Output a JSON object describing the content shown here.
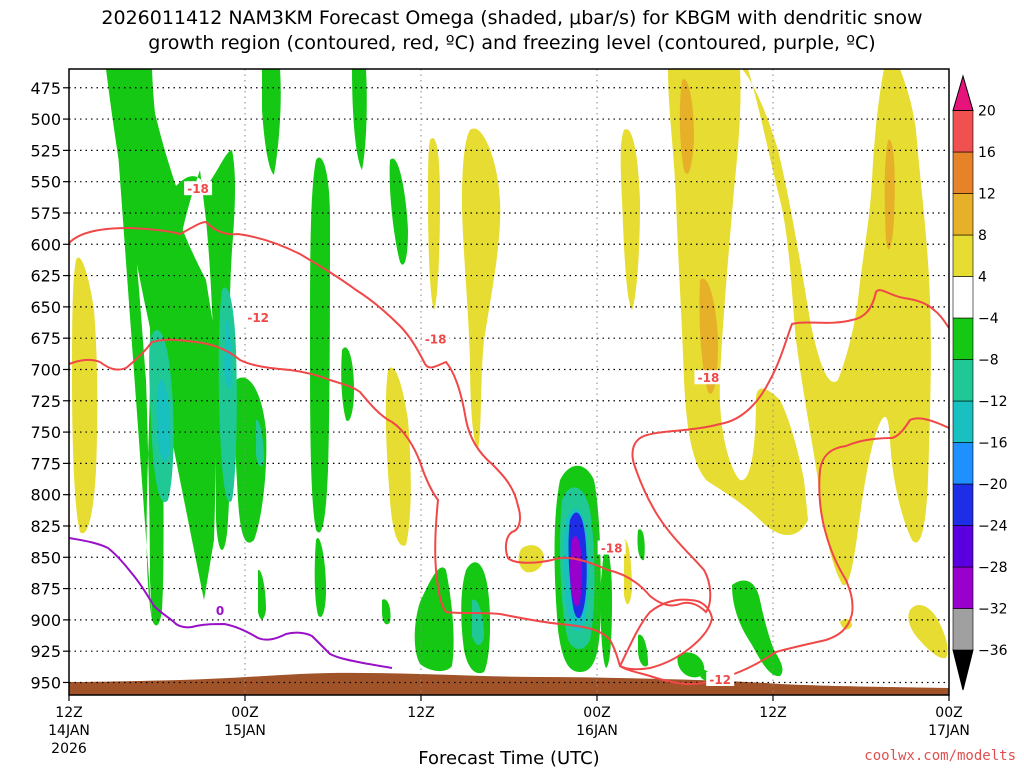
{
  "chart_data": {
    "type": "contour-cross-section",
    "title_line1": "2026011412 NAM3KM Forecast Omega (shaded, μbar/s) for KBGM with dendritic snow",
    "title_line2": "growth region (contoured, red, ºC) and freezing level (contoured, purple, ºC)",
    "xlabel": "Forecast Time (UTC)",
    "credit": "coolwx.com/modelts",
    "x_range_hours": [
      0,
      60
    ],
    "y_range_hpa": [
      460,
      960
    ],
    "y_ticks": [
      475,
      500,
      525,
      550,
      575,
      600,
      625,
      650,
      675,
      700,
      725,
      750,
      775,
      800,
      825,
      850,
      875,
      900,
      925,
      950
    ],
    "x_ticks": [
      {
        "hour": 0,
        "time": "12Z",
        "date": "14JAN",
        "year": "2026"
      },
      {
        "hour": 12,
        "time": "00Z",
        "date": "15JAN",
        "year": ""
      },
      {
        "hour": 24,
        "time": "12Z",
        "date": "",
        "year": ""
      },
      {
        "hour": 36,
        "time": "00Z",
        "date": "16JAN",
        "year": ""
      },
      {
        "hour": 48,
        "time": "12Z",
        "date": "",
        "year": ""
      },
      {
        "hour": 60,
        "time": "00Z",
        "date": "17JAN",
        "year": ""
      }
    ],
    "colorbar": {
      "levels": [
        -36,
        -32,
        -28,
        -24,
        -20,
        -16,
        -12,
        -8,
        -4,
        4,
        8,
        12,
        16,
        20
      ],
      "labels": [
        "20",
        "16",
        "12",
        "8",
        "4",
        "−4",
        "−8",
        "−12",
        "−16",
        "−20",
        "−24",
        "−28",
        "−32",
        "−36"
      ],
      "colors": [
        "#000000",
        "#a0a0a0",
        "#9a00cc",
        "#5a00e0",
        "#1e2ee6",
        "#1e90ff",
        "#18c0c0",
        "#20c896",
        "#14c814",
        "#ffffff",
        "#e6dc32",
        "#e6b028",
        "#e68228",
        "#f05050",
        "#e6147a"
      ]
    },
    "colors": {
      "dgz": "#f04848",
      "freezing": "#9a10c8",
      "terrain": "#a05228"
    },
    "contour_labels": [
      {
        "text": "-18",
        "hour": 8.8,
        "hpa": 556,
        "color": "#f04848"
      },
      {
        "text": "-12",
        "hour": 12.9,
        "hpa": 659,
        "color": "#f04848"
      },
      {
        "text": "-18",
        "hour": 25.0,
        "hpa": 676,
        "color": "#f04848"
      },
      {
        "text": "-18",
        "hour": 43.6,
        "hpa": 707,
        "color": "#f04848"
      },
      {
        "text": "-18",
        "hour": 37.0,
        "hpa": 843,
        "color": "#f04848"
      },
      {
        "text": "-12",
        "hour": 44.4,
        "hpa": 948,
        "color": "#f04848"
      },
      {
        "text": "0",
        "hour": 10.3,
        "hpa": 893,
        "color": "#9a10c8"
      }
    ]
  }
}
